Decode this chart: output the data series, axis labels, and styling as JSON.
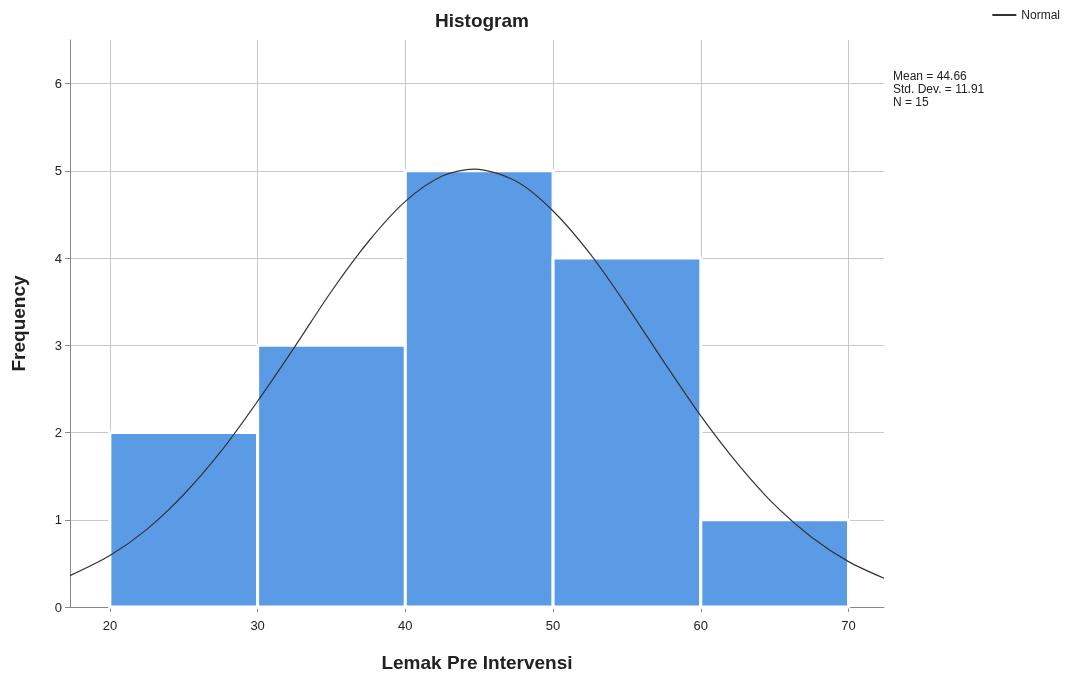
{
  "chart_data": {
    "type": "histogram",
    "title": "Histogram",
    "xlabel": "Lemak Pre Intervensi",
    "ylabel": "Frequency",
    "bins": [
      20,
      30,
      40,
      50,
      60,
      70
    ],
    "values": [
      2,
      3,
      5,
      4,
      1
    ],
    "color": "#5b9be6",
    "series": [
      {
        "type": "line",
        "name": "Normal",
        "color": "#333333",
        "x": [
          17.3,
          20,
          22.5,
          25,
          27.5,
          30,
          32.5,
          35,
          37.5,
          40,
          42.5,
          44.66,
          47.5,
          50,
          52.5,
          55,
          57.5,
          60,
          62.5,
          65,
          67.5,
          70,
          72.4
        ],
        "values": [
          0.36,
          0.59,
          0.89,
          1.29,
          1.78,
          2.36,
          2.98,
          3.62,
          4.19,
          4.65,
          4.94,
          5.02,
          4.88,
          4.54,
          4.05,
          3.45,
          2.81,
          2.19,
          1.64,
          1.17,
          0.8,
          0.52,
          0.33
        ]
      }
    ],
    "xlim": [
      17.3,
      72.4
    ],
    "xticks": [
      20,
      30,
      40,
      50,
      60,
      70
    ],
    "ylim": [
      0,
      6.5
    ],
    "yticks": [
      0,
      1,
      2,
      3,
      4,
      5,
      6
    ],
    "grid": true,
    "legend": "top right",
    "marker": "none",
    "line_style": "solid",
    "annotations": [
      "Mean = 44.66",
      "Std. Dev. = 11.91",
      "N = 15"
    ]
  }
}
